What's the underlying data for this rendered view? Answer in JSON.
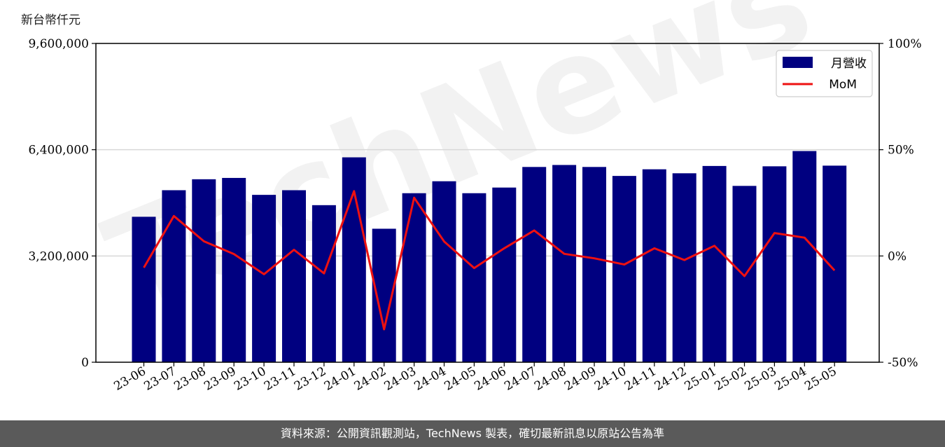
{
  "unit_label": "新台幣仟元",
  "footer_text": "資料來源：公開資訊觀測站，TechNews 製表，確切最新訊息以原站公告為準",
  "watermark": "TechNews",
  "colors": {
    "bar": "#000080",
    "line": "#ee1111",
    "grid": "#d8d8d8",
    "footer_bg": "#5a5a5a"
  },
  "chart_data": {
    "type": "bar+line",
    "categories": [
      "23-06",
      "23-07",
      "23-08",
      "23-09",
      "23-10",
      "23-11",
      "23-12",
      "24-01",
      "24-02",
      "24-03",
      "24-04",
      "24-05",
      "24-06",
      "24-07",
      "24-08",
      "24-09",
      "24-10",
      "24-11",
      "24-12",
      "25-01",
      "25-02",
      "25-03",
      "25-04",
      "25-05"
    ],
    "series": [
      {
        "name": "月營收",
        "type": "bar",
        "axis": "left",
        "values": [
          4380000,
          5180000,
          5510000,
          5550000,
          5040000,
          5180000,
          4730000,
          6170000,
          4020000,
          5090000,
          5450000,
          5090000,
          5260000,
          5880000,
          5940000,
          5880000,
          5610000,
          5810000,
          5690000,
          5910000,
          5310000,
          5900000,
          6360000,
          5920000
        ]
      },
      {
        "name": "MoM",
        "type": "line",
        "axis": "right",
        "values": [
          -5.5,
          18.8,
          6.9,
          0.9,
          -8.6,
          2.9,
          -8.2,
          30.5,
          -34.5,
          27.4,
          6.8,
          -5.7,
          3.6,
          12.0,
          1.0,
          -1.1,
          -4.0,
          3.6,
          -1.9,
          4.8,
          -9.5,
          10.8,
          8.6,
          -6.8
        ]
      }
    ],
    "y_left": {
      "ticks": [
        0,
        3200000,
        6400000,
        9600000
      ],
      "tick_labels": [
        "0",
        "3,200,000",
        "6,400,000",
        "9,600,000"
      ],
      "ylim": [
        0,
        9600000
      ]
    },
    "y_right": {
      "ticks": [
        -50,
        0,
        50,
        100
      ],
      "tick_labels": [
        "-50%",
        "0%",
        "50%",
        "100%"
      ],
      "ylim": [
        -50,
        100
      ]
    },
    "grid": "horizontal",
    "legend_position": "top-right"
  }
}
